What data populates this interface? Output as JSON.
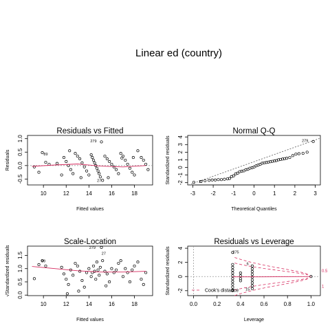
{
  "figure": {
    "title": "Linear ed (country)"
  },
  "chart_data": [
    {
      "type": "scatter",
      "title": "Residuals vs Fitted",
      "xlabel": "Fitted values",
      "ylabel": "Residuals",
      "xlim": [
        8.6,
        19.6
      ],
      "ylim": [
        -0.72,
        1.12
      ],
      "xticks": [
        10,
        12,
        14,
        16,
        18
      ],
      "yticks": [
        -0.5,
        0.0,
        0.5,
        1.0
      ],
      "ytick_labels": [
        "-0.5",
        "0.0",
        "0.5",
        "1.0"
      ],
      "points": [
        [
          9.2,
          -0.05
        ],
        [
          9.6,
          -0.25
        ],
        [
          9.9,
          0.48
        ],
        [
          10.2,
          0.12
        ],
        [
          10.5,
          0.05
        ],
        [
          11.2,
          0.08
        ],
        [
          11.6,
          -0.35
        ],
        [
          11.8,
          0.3
        ],
        [
          12.0,
          0.15
        ],
        [
          12.2,
          0.0
        ],
        [
          12.4,
          -0.15
        ],
        [
          12.6,
          -0.3
        ],
        [
          12.8,
          0.45
        ],
        [
          13.0,
          0.35
        ],
        [
          13.2,
          0.25
        ],
        [
          13.4,
          0.1
        ],
        [
          13.6,
          -0.05
        ],
        [
          13.8,
          -0.2
        ],
        [
          14.0,
          -0.35
        ],
        [
          14.2,
          0.4
        ],
        [
          14.3,
          0.3
        ],
        [
          14.4,
          0.2
        ],
        [
          14.5,
          0.1
        ],
        [
          14.6,
          0.0
        ],
        [
          14.7,
          -0.1
        ],
        [
          14.8,
          -0.2
        ],
        [
          14.9,
          -0.3
        ],
        [
          15.0,
          -0.42
        ],
        [
          15.1,
          0.88
        ],
        [
          15.2,
          -0.55
        ],
        [
          15.4,
          0.35
        ],
        [
          15.6,
          0.25
        ],
        [
          15.8,
          0.15
        ],
        [
          16.0,
          0.05
        ],
        [
          16.2,
          -0.05
        ],
        [
          16.4,
          -0.15
        ],
        [
          16.6,
          -0.3
        ],
        [
          16.8,
          0.45
        ],
        [
          17.0,
          0.35
        ],
        [
          17.2,
          0.2
        ],
        [
          17.4,
          0.05
        ],
        [
          17.6,
          -0.1
        ],
        [
          17.8,
          -0.25
        ],
        [
          18.0,
          -0.35
        ],
        [
          18.3,
          0.55
        ],
        [
          18.6,
          0.3
        ],
        [
          18.8,
          0.2
        ],
        [
          19.0,
          0.05
        ],
        [
          19.2,
          -0.15
        ],
        [
          12.3,
          0.55
        ],
        [
          13.3,
          -0.45
        ],
        [
          15.7,
          -0.45
        ],
        [
          16.9,
          0.28
        ],
        [
          17.9,
          0.3
        ]
      ],
      "smooth": [
        [
          9.0,
          -0.03
        ],
        [
          11.0,
          0.02
        ],
        [
          13.0,
          0.06
        ],
        [
          15.0,
          -0.02
        ],
        [
          17.0,
          -0.05
        ],
        [
          19.0,
          0.0
        ]
      ],
      "annotations": [
        {
          "label": "89",
          "x": 10.2,
          "y": 0.38
        },
        {
          "label": "279",
          "x": 14.4,
          "y": 0.86
        },
        {
          "label": "27",
          "x": 14.9,
          "y": -0.6
        }
      ]
    },
    {
      "type": "scatter",
      "title": "Normal Q-Q",
      "xlabel": "Theoretical Quantiles",
      "ylabel": "Standardized residuals",
      "xlim": [
        -3.25,
        3.25
      ],
      "ylim": [
        -2.3,
        4.2
      ],
      "xticks": [
        -3,
        -2,
        -1,
        0,
        1,
        2,
        3
      ],
      "yticks": [
        -2,
        -1,
        0,
        1,
        2,
        3,
        4
      ],
      "ytick_labels": [
        "-2",
        "-1",
        "0",
        "1",
        "2",
        "3",
        "4"
      ],
      "points": [
        [
          -2.95,
          -1.95
        ],
        [
          -2.6,
          -1.85
        ],
        [
          -2.4,
          -1.75
        ],
        [
          -2.2,
          -1.7
        ],
        [
          -2.05,
          -1.65
        ],
        [
          -1.9,
          -1.65
        ],
        [
          -1.75,
          -1.6
        ],
        [
          -1.6,
          -1.6
        ],
        [
          -1.45,
          -1.55
        ],
        [
          -1.3,
          -1.5
        ],
        [
          -1.2,
          -1.45
        ],
        [
          -1.1,
          -1.2
        ],
        [
          -1.0,
          -1.1
        ],
        [
          -0.9,
          -0.85
        ],
        [
          -0.8,
          -0.75
        ],
        [
          -0.7,
          -0.55
        ],
        [
          -0.6,
          -0.5
        ],
        [
          -0.5,
          -0.45
        ],
        [
          -0.4,
          -0.3
        ],
        [
          -0.3,
          -0.25
        ],
        [
          -0.2,
          -0.1
        ],
        [
          -0.1,
          -0.05
        ],
        [
          0.0,
          0.05
        ],
        [
          0.1,
          0.2
        ],
        [
          0.2,
          0.3
        ],
        [
          0.3,
          0.4
        ],
        [
          0.4,
          0.55
        ],
        [
          0.5,
          0.6
        ],
        [
          0.6,
          0.65
        ],
        [
          0.7,
          0.7
        ],
        [
          0.8,
          0.75
        ],
        [
          0.9,
          0.8
        ],
        [
          1.0,
          0.85
        ],
        [
          1.1,
          0.9
        ],
        [
          1.2,
          1.0
        ],
        [
          1.3,
          1.05
        ],
        [
          1.4,
          1.1
        ],
        [
          1.5,
          1.15
        ],
        [
          1.6,
          1.2
        ],
        [
          1.75,
          1.3
        ],
        [
          1.9,
          1.55
        ],
        [
          2.05,
          1.75
        ],
        [
          2.2,
          1.8
        ],
        [
          2.4,
          1.85
        ],
        [
          2.6,
          2.0
        ],
        [
          2.9,
          3.4
        ]
      ],
      "reference_line": [
        [
          -3.2,
          -2.3
        ],
        [
          3.2,
          3.8
        ]
      ],
      "annotations": [
        {
          "label": "279",
          "x": 2.5,
          "y": 3.35
        },
        {
          "label": "27",
          "x": -2.6,
          "y": -2.05
        }
      ]
    },
    {
      "type": "scatter",
      "title": "Scale-Location",
      "xlabel": "Fitted values",
      "ylabel": "√Standardized residuals",
      "xlim": [
        8.6,
        19.6
      ],
      "ylim": [
        -0.02,
        1.85
      ],
      "xticks": [
        10,
        12,
        14,
        16,
        18
      ],
      "yticks": [
        0.0,
        0.5,
        1.0,
        1.5
      ],
      "ytick_labels": [
        "0.0",
        "0.5",
        "1.0",
        "1.5"
      ],
      "points": [
        [
          9.2,
          0.62
        ],
        [
          9.6,
          1.15
        ],
        [
          9.9,
          1.3
        ],
        [
          10.2,
          1.1
        ],
        [
          11.6,
          1.05
        ],
        [
          11.8,
          0.8
        ],
        [
          12.0,
          0.6
        ],
        [
          12.2,
          0.4
        ],
        [
          12.4,
          0.95
        ],
        [
          12.6,
          0.75
        ],
        [
          12.8,
          1.2
        ],
        [
          13.0,
          1.1
        ],
        [
          13.2,
          0.9
        ],
        [
          13.4,
          0.55
        ],
        [
          13.6,
          0.3
        ],
        [
          13.8,
          0.85
        ],
        [
          14.0,
          1.0
        ],
        [
          14.2,
          0.7
        ],
        [
          14.3,
          0.85
        ],
        [
          14.4,
          1.1
        ],
        [
          14.5,
          0.9
        ],
        [
          14.6,
          0.6
        ],
        [
          14.7,
          1.25
        ],
        [
          14.8,
          0.95
        ],
        [
          14.9,
          0.75
        ],
        [
          15.0,
          1.05
        ],
        [
          15.1,
          1.8
        ],
        [
          15.2,
          1.3
        ],
        [
          15.4,
          0.9
        ],
        [
          15.6,
          0.8
        ],
        [
          15.8,
          0.5
        ],
        [
          16.0,
          1.0
        ],
        [
          16.2,
          0.85
        ],
        [
          16.4,
          0.95
        ],
        [
          16.6,
          1.2
        ],
        [
          16.8,
          1.3
        ],
        [
          17.0,
          0.7
        ],
        [
          17.2,
          1.0
        ],
        [
          17.4,
          0.85
        ],
        [
          17.6,
          0.5
        ],
        [
          17.8,
          0.95
        ],
        [
          18.0,
          1.1
        ],
        [
          18.3,
          1.25
        ],
        [
          18.6,
          0.6
        ],
        [
          18.8,
          0.4
        ],
        [
          19.0,
          0.85
        ],
        [
          12.1,
          0.05
        ],
        [
          13.1,
          0.15
        ],
        [
          15.5,
          0.35
        ]
      ],
      "smooth": [
        [
          9.0,
          1.08
        ],
        [
          11.0,
          1.0
        ],
        [
          13.0,
          0.92
        ],
        [
          15.0,
          0.87
        ],
        [
          17.0,
          0.87
        ],
        [
          19.0,
          0.9
        ]
      ],
      "annotations": [
        {
          "label": "89",
          "x": 10.0,
          "y": 1.24
        },
        {
          "label": "279",
          "x": 14.3,
          "y": 1.74
        },
        {
          "label": "27",
          "x": 15.3,
          "y": 1.52
        }
      ]
    },
    {
      "type": "scatter",
      "title": "Residuals vs Leverage",
      "xlabel": "Leverage",
      "ylabel": "Standardized residuals",
      "xlim": [
        -0.05,
        1.08
      ],
      "ylim": [
        -2.7,
        4.3
      ],
      "xticks": [
        0.0,
        0.2,
        0.4,
        0.6,
        0.8,
        1.0
      ],
      "xtick_labels": [
        "0.0",
        "0.2",
        "0.4",
        "0.6",
        "0.8",
        "1.0"
      ],
      "yticks": [
        -2,
        0,
        2,
        4
      ],
      "ytick_labels": [
        "-2",
        "0",
        "2",
        "4"
      ],
      "points": [
        [
          0.333,
          3.4
        ],
        [
          0.333,
          1.7
        ],
        [
          0.333,
          1.3
        ],
        [
          0.333,
          0.9
        ],
        [
          0.333,
          0.5
        ],
        [
          0.333,
          0.1
        ],
        [
          0.333,
          -0.3
        ],
        [
          0.333,
          -0.7
        ],
        [
          0.333,
          -1.1
        ],
        [
          0.333,
          -1.5
        ],
        [
          0.333,
          -1.9
        ],
        [
          0.333,
          -2.0
        ],
        [
          0.4,
          0.5
        ],
        [
          0.4,
          0.1
        ],
        [
          0.4,
          -0.3
        ],
        [
          0.4,
          -0.6
        ],
        [
          0.5,
          1.5
        ],
        [
          0.5,
          1.1
        ],
        [
          0.5,
          0.7
        ],
        [
          0.5,
          0.3
        ],
        [
          0.5,
          -0.1
        ],
        [
          0.5,
          -0.5
        ],
        [
          0.5,
          -0.9
        ],
        [
          0.5,
          -1.3
        ],
        [
          0.5,
          -1.7
        ],
        [
          1.0,
          0.0
        ]
      ],
      "smooth": [
        [
          0.33,
          -0.05
        ],
        [
          0.5,
          -0.05
        ],
        [
          0.7,
          -0.04
        ],
        [
          1.0,
          0.0
        ]
      ],
      "cooks_distance_levels": [
        "0.5",
        "1"
      ],
      "legend": {
        "label": "Cook's distance",
        "position": "bottom-left"
      },
      "annotations": [
        {
          "label": "275",
          "x": 0.36,
          "y": 3.3
        },
        {
          "label": "6",
          "x": 0.46,
          "y": 1.65
        },
        {
          "label": "15",
          "x": 0.46,
          "y": -1.95
        }
      ]
    }
  ],
  "colors": {
    "smooth": "#d62a5e",
    "grid_line": "#999999",
    "cooks": "#d62a5e"
  }
}
